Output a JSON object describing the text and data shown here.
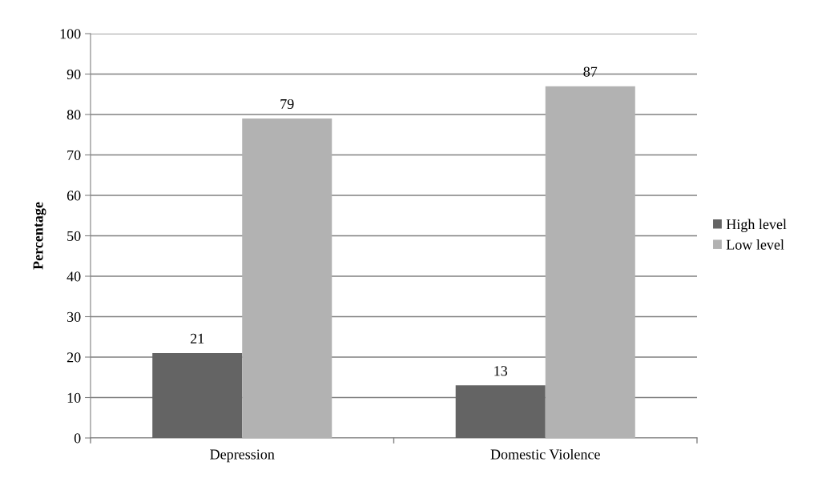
{
  "chart_data": {
    "type": "bar",
    "ylabel": "Percentage",
    "categories": [
      "Depression",
      "Domestic Violence"
    ],
    "series": [
      {
        "name": "High level",
        "color": "#646464",
        "values": [
          21,
          13
        ]
      },
      {
        "name": "Low level",
        "color": "#b2b2b2",
        "values": [
          79,
          87
        ]
      }
    ],
    "ylim": [
      0,
      100
    ],
    "yticks": [
      0,
      10,
      20,
      30,
      40,
      50,
      60,
      70,
      80,
      90,
      100
    ],
    "grid": "y",
    "legend": "right",
    "data_labels": true
  }
}
